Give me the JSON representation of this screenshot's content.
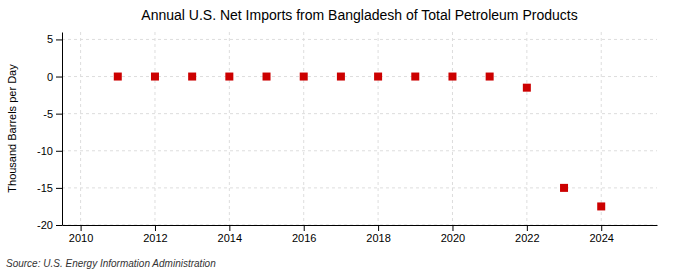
{
  "chart_data": {
    "type": "scatter",
    "title": "Annual U.S. Net Imports from Bangladesh of Total Petroleum Products",
    "y_label": "Thousand Barrels per Day",
    "annotation": "Source: U.S. Energy Information Administration",
    "x": [
      2011,
      2012,
      2013,
      2014,
      2015,
      2016,
      2017,
      2018,
      2019,
      2020,
      2021,
      2022,
      2023,
      2024
    ],
    "values": [
      0,
      0,
      0,
      0,
      0,
      0,
      0,
      0,
      0,
      0,
      0,
      -1.5,
      -15.0,
      -17.5
    ],
    "color": "#cc0000",
    "marker": "square",
    "xlim": [
      2009.5,
      2025.5
    ],
    "xticks": [
      2010,
      2012,
      2014,
      2016,
      2018,
      2020,
      2022,
      2024
    ],
    "ylim": [
      -20,
      6
    ],
    "yticks": [
      -20,
      -15,
      -10,
      -5,
      0,
      5
    ],
    "grid": true
  }
}
